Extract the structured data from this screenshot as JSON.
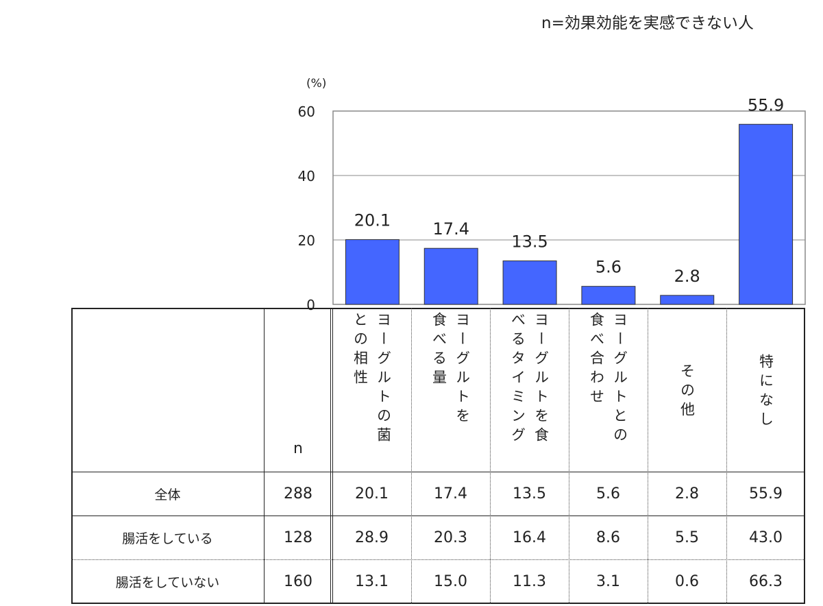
{
  "note": "n=効果効能を実感できない人",
  "chart_data": {
    "type": "bar",
    "unit_label": "(%)",
    "ylim": [
      0,
      60
    ],
    "yticks": [
      "0",
      "20",
      "40",
      "60"
    ],
    "grid": true,
    "bar_color": "#4466FF",
    "categories": [
      "ヨーグルトの菌との相性",
      "ヨーグルトを食べる量",
      "ヨーグルトを食べるタイミング",
      "ヨーグルトとの食べ合わせ",
      "その他",
      "特になし"
    ],
    "values": [
      20.1,
      17.4,
      13.5,
      5.6,
      2.8,
      55.9
    ],
    "value_labels": [
      "20.1",
      "17.4",
      "13.5",
      "5.6",
      "2.8",
      "55.9"
    ]
  },
  "table": {
    "n_header": "n",
    "column_headers": [
      "ヨーグルトの菌\nとの相性",
      "ヨーグルトを\n食べる量",
      "ヨーグルトを食\nべるタイミング",
      "ヨーグルトとの\n食べ合わせ",
      "その他",
      "特になし"
    ],
    "rows": [
      {
        "label": "全体",
        "n": "288",
        "values": [
          "20.1",
          "17.4",
          "13.5",
          "5.6",
          "2.8",
          "55.9"
        ]
      },
      {
        "label": "腸活をしている",
        "n": "128",
        "values": [
          "28.9",
          "20.3",
          "16.4",
          "8.6",
          "5.5",
          "43.0"
        ]
      },
      {
        "label": "腸活をしていない",
        "n": "160",
        "values": [
          "13.1",
          "15.0",
          "11.3",
          "3.1",
          "0.6",
          "66.3"
        ]
      }
    ]
  }
}
